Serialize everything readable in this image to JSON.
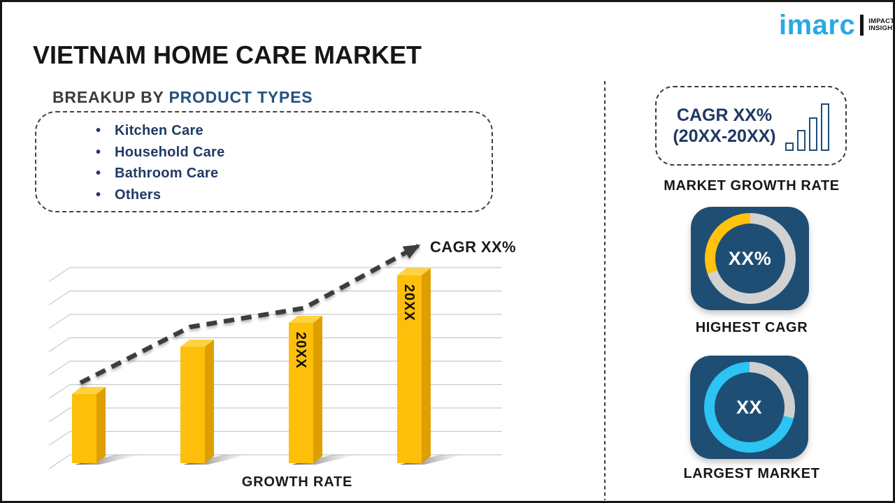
{
  "logo": {
    "brand": "imarc",
    "tagline_line1": "IMPACTFUL",
    "tagline_line2": "INSIGHTS",
    "brand_color": "#29a9e1"
  },
  "title": "VIETNAM HOME CARE MARKET",
  "breakup": {
    "heading_prefix": "BREAKUP BY ",
    "heading_highlight": "PRODUCT TYPES",
    "items": [
      "Kitchen Care",
      "Household Care",
      "Bathroom Care",
      "Others"
    ]
  },
  "chart_data": {
    "type": "bar",
    "title": "",
    "xlabel": "GROWTH RATE",
    "ylabel": "",
    "categories": [
      "",
      "",
      "20XX",
      "20XX"
    ],
    "values": [
      0.354,
      0.596,
      0.718,
      0.961
    ],
    "values_note": "relative bar heights; placeholder chart with unlabeled value axis",
    "grid": true,
    "gridline_count": 9,
    "bar_front_color": "#fdbf0a",
    "bar_top_color": "#ffd23f",
    "bar_side_color": "#de9f00",
    "grid_color": "#c9c9c9",
    "trend": {
      "label": "CAGR XX%",
      "color": "#3d3d3d",
      "points": [
        [
          55,
          208
        ],
        [
          212,
          128
        ],
        [
          375,
          101
        ],
        [
          538,
          12
        ]
      ]
    }
  },
  "right_panel": {
    "growth_box": {
      "line1": "CAGR XX%",
      "line2": "(20XX-20XX)",
      "icon_bar_heights": [
        12,
        30,
        48,
        68
      ],
      "icon_color": "#1f4e79",
      "caption": "MARKET GROWTH RATE"
    },
    "highest_cagr": {
      "value": "XX%",
      "caption": "HIGHEST CAGR",
      "tile_color": "#1f4e74",
      "ring_base_color": "#d2d2d2",
      "segment_color": "#ffc20d",
      "segment_from_deg": 250,
      "segment_to_deg": 360
    },
    "largest_market": {
      "value": "XX",
      "caption": "LARGEST MARKET",
      "tile_color": "#1f4e74",
      "ring_base_color": "#cfcfcf",
      "segment_color": "#2bc4f3",
      "segment_from_deg": 104,
      "segment_to_deg": 360
    }
  }
}
